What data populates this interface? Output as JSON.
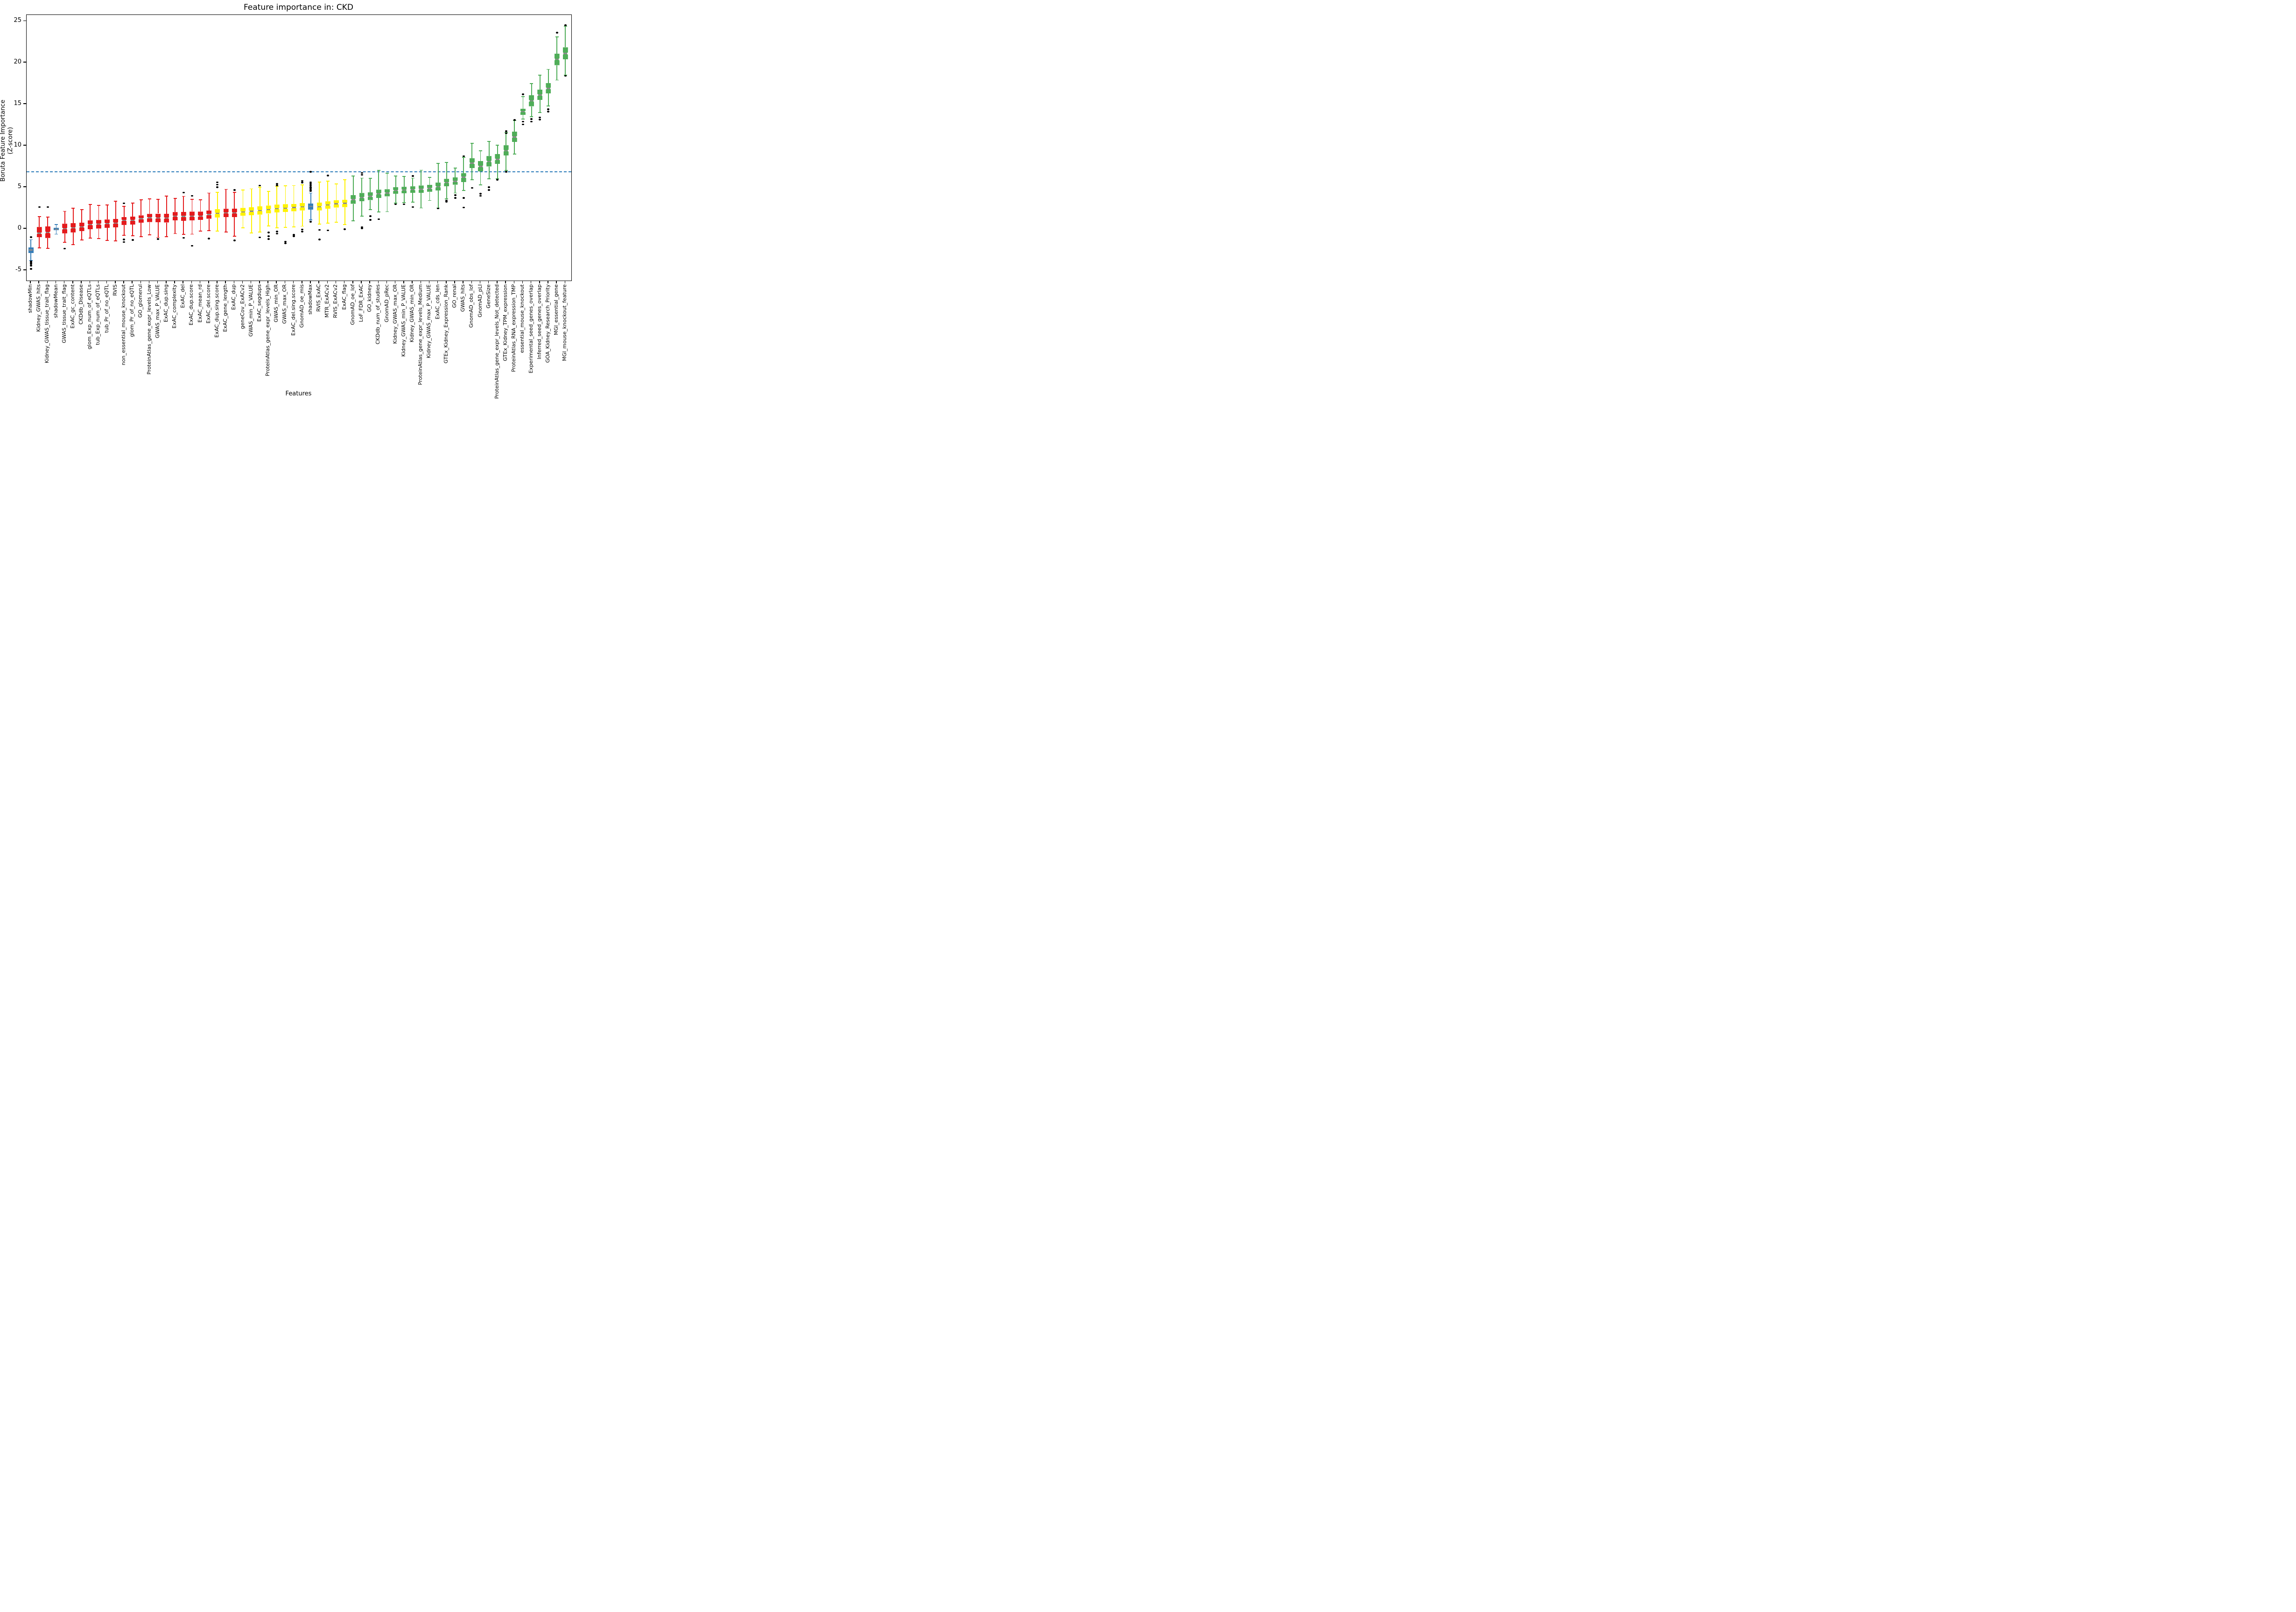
{
  "header": {
    "title": "Feature importance in: CKD"
  },
  "axes": {
    "x_label": "Features",
    "y_label_line1": "Boruta Feature Importance",
    "y_label_line2": "(Z-score)"
  },
  "colors": {
    "shadow": "#377EB8",
    "rejected": "#E41A1C",
    "tentative": "#FFF200",
    "confirmed": "#4FAD58",
    "median_line": "#8C8C8C",
    "threshold_line": "#2B7BBA",
    "outlier": "#000000"
  },
  "chart_data": {
    "type": "boxplot",
    "title": "Feature importance in: CKD",
    "xlabel": "Features",
    "ylabel": "Boruta Feature Importance (Z-score)",
    "ylim": [
      -6.25,
      25.75
    ],
    "yticks": [
      -5,
      0,
      5,
      10,
      15,
      20,
      25
    ],
    "grid": false,
    "threshold_line": {
      "y": 6.85,
      "style": "dashed",
      "color": "#2B7BBA"
    },
    "group_semantics": {
      "shadow": "shadow attribute (blue)",
      "rejected": "rejected feature (red)",
      "tentative": "tentative feature (yellow)",
      "confirmed": "confirmed feature (green)"
    },
    "series": [
      {
        "label": "shadowMin",
        "group": "shadow",
        "whislo": -3.85,
        "q1": -2.95,
        "med": -2.57,
        "q3": -2.25,
        "whishi": -1.33,
        "outliers": [
          -1.03,
          -3.95,
          -4.1,
          -4.25,
          -4.45,
          -4.85
        ]
      },
      {
        "label": "Kidney_GWAS_hits",
        "group": "rejected",
        "whislo": -2.3,
        "q1": -1.03,
        "med": -0.55,
        "q3": 0.2,
        "whishi": 1.45,
        "outliers": [
          2.6
        ]
      },
      {
        "label": "Kidney_GWAS_tissue_trait_flag",
        "group": "rejected",
        "whislo": -2.35,
        "q1": -1.12,
        "med": -0.46,
        "q3": 0.28,
        "whishi": 1.4,
        "outliers": [
          2.6
        ]
      },
      {
        "label": "shadowMean",
        "group": "shadow",
        "whislo": -0.66,
        "q1": -0.18,
        "med": -0.05,
        "q3": 0.08,
        "whishi": 0.49,
        "outliers": []
      },
      {
        "label": "GWAS_tissue_trait_flag",
        "group": "rejected",
        "whislo": -1.64,
        "q1": -0.56,
        "med": 0.0,
        "q3": 0.6,
        "whishi": 2.1,
        "outliers": [
          -2.4
        ]
      },
      {
        "label": "ExAC_gc_content",
        "group": "rejected",
        "whislo": -1.9,
        "q1": -0.45,
        "med": 0.1,
        "q3": 0.68,
        "whishi": 2.45,
        "outliers": []
      },
      {
        "label": "CKDdb_Disease",
        "group": "rejected",
        "whislo": -1.35,
        "q1": -0.3,
        "med": 0.22,
        "q3": 0.75,
        "whishi": 2.3,
        "outliers": []
      },
      {
        "label": "glom_Exp_num_of_eQTLs",
        "group": "rejected",
        "whislo": -1.15,
        "q1": -0.08,
        "med": 0.5,
        "q3": 1.0,
        "whishi": 2.9,
        "outliers": []
      },
      {
        "label": "tub_Exp_num_of_eQTLs",
        "group": "rejected",
        "whislo": -1.2,
        "q1": 0.02,
        "med": 0.55,
        "q3": 1.05,
        "whishi": 2.8,
        "outliers": []
      },
      {
        "label": "tub_Pr_of_no_eQTL",
        "group": "rejected",
        "whislo": -1.4,
        "q1": 0.1,
        "med": 0.62,
        "q3": 1.1,
        "whishi": 2.85,
        "outliers": []
      },
      {
        "label": "RVIS",
        "group": "rejected",
        "whislo": -1.45,
        "q1": 0.16,
        "med": 0.68,
        "q3": 1.18,
        "whishi": 3.3,
        "outliers": []
      },
      {
        "label": "non_essential_mouse_knockout",
        "group": "rejected",
        "whislo": -0.8,
        "q1": 0.45,
        "med": 1.0,
        "q3": 1.42,
        "whishi": 2.7,
        "outliers": [
          3.05,
          -1.3,
          -1.6
        ]
      },
      {
        "label": "glom_Pr_of_no_eQTL",
        "group": "rejected",
        "whislo": -0.85,
        "q1": 0.5,
        "med": 1.02,
        "q3": 1.48,
        "whishi": 3.1,
        "outliers": [
          -1.35
        ]
      },
      {
        "label": "GO_glomerul",
        "group": "rejected",
        "whislo": -0.95,
        "q1": 0.72,
        "med": 1.2,
        "q3": 1.6,
        "whishi": 3.5,
        "outliers": []
      },
      {
        "label": "ProteinAtlas_gene_expr_levels_Low",
        "group": "rejected",
        "whislo": -0.75,
        "q1": 0.8,
        "med": 1.32,
        "q3": 1.78,
        "whishi": 3.6,
        "outliers": []
      },
      {
        "label": "GWAS_max_P_VALUE",
        "group": "rejected",
        "whislo": -1.05,
        "q1": 0.78,
        "med": 1.3,
        "q3": 1.82,
        "whishi": 3.55,
        "outliers": [
          -1.25
        ]
      },
      {
        "label": "ExAC_dup.sing",
        "group": "rejected",
        "whislo": -0.95,
        "q1": 0.75,
        "med": 1.28,
        "q3": 1.8,
        "whishi": 3.95,
        "outliers": []
      },
      {
        "label": "ExAC_complexity",
        "group": "rejected",
        "whislo": -0.6,
        "q1": 1.0,
        "med": 1.5,
        "q3": 2.0,
        "whishi": 3.65,
        "outliers": []
      },
      {
        "label": "ExAC_del",
        "group": "rejected",
        "whislo": -0.7,
        "q1": 0.95,
        "med": 1.48,
        "q3": 2.02,
        "whishi": 3.9,
        "outliers": [
          4.35,
          -1.1
        ]
      },
      {
        "label": "ExAC_dup.score",
        "group": "rejected",
        "whislo": -0.65,
        "q1": 1.0,
        "med": 1.5,
        "q3": 2.05,
        "whishi": 3.55,
        "outliers": [
          3.95,
          -2.05
        ]
      },
      {
        "label": "ExAC_mean_rd",
        "group": "rejected",
        "whislo": -0.3,
        "q1": 1.05,
        "med": 1.52,
        "q3": 2.05,
        "whishi": 3.5,
        "outliers": []
      },
      {
        "label": "ExAC_del.score",
        "group": "rejected",
        "whislo": -0.25,
        "q1": 1.2,
        "med": 1.7,
        "q3": 2.2,
        "whishi": 4.3,
        "outliers": [
          -1.2
        ]
      },
      {
        "label": "ExAC_dup.sing.score",
        "group": "tentative",
        "whislo": -0.3,
        "q1": 1.35,
        "med": 1.85,
        "q3": 2.35,
        "whishi": 4.4,
        "outliers": [
          5.0,
          5.3,
          5.6
        ]
      },
      {
        "label": "ExAC_gene_length",
        "group": "rejected",
        "whislo": -0.4,
        "q1": 1.4,
        "med": 1.9,
        "q3": 2.4,
        "whishi": 4.75,
        "outliers": []
      },
      {
        "label": "ExAC_dup",
        "group": "rejected",
        "whislo": -0.9,
        "q1": 1.38,
        "med": 1.9,
        "q3": 2.42,
        "whishi": 4.4,
        "outliers": [
          4.65,
          -1.4
        ]
      },
      {
        "label": "geneCov_ExACv2",
        "group": "tentative",
        "whislo": 0.1,
        "q1": 1.55,
        "med": 2.0,
        "q3": 2.5,
        "whishi": 4.65,
        "outliers": []
      },
      {
        "label": "GWAS_min_P_VALUE",
        "group": "tentative",
        "whislo": -0.5,
        "q1": 1.6,
        "med": 2.1,
        "q3": 2.6,
        "whishi": 4.8,
        "outliers": []
      },
      {
        "label": "ExAC_segdups",
        "group": "tentative",
        "whislo": -0.4,
        "q1": 1.7,
        "med": 2.2,
        "q3": 2.7,
        "whishi": 5.0,
        "outliers": [
          5.2,
          -1.05
        ]
      },
      {
        "label": "ProteinAtlas_gene_expr_levels_High",
        "group": "tentative",
        "whislo": 0.35,
        "q1": 1.82,
        "med": 2.3,
        "q3": 2.78,
        "whishi": 4.5,
        "outliers": [
          -0.45,
          -0.9,
          -1.25
        ]
      },
      {
        "label": "GWAS_min_OR",
        "group": "tentative",
        "whislo": 0.1,
        "q1": 1.95,
        "med": 2.42,
        "q3": 2.9,
        "whishi": 5.1,
        "outliers": [
          5.2,
          5.4,
          -0.35,
          -0.6
        ]
      },
      {
        "label": "GWAS_max_OR",
        "group": "tentative",
        "whislo": 0.15,
        "q1": 2.0,
        "med": 2.45,
        "q3": 2.95,
        "whishi": 5.15,
        "outliers": [
          -1.55,
          -1.75
        ]
      },
      {
        "label": "ExAC_del.sing.score",
        "group": "tentative",
        "whislo": 0.2,
        "q1": 2.1,
        "med": 2.55,
        "q3": 3.0,
        "whishi": 5.2,
        "outliers": [
          -0.75,
          -0.9
        ]
      },
      {
        "label": "GnomAD_oe_mis",
        "group": "tentative",
        "whislo": 0.3,
        "q1": 2.2,
        "med": 2.62,
        "q3": 3.1,
        "whishi": 5.3,
        "outliers": [
          -0.1,
          -0.35,
          5.55,
          5.75
        ]
      },
      {
        "label": "shadowMax",
        "group": "shadow",
        "whislo": 1.05,
        "q1": 2.32,
        "med": 2.68,
        "q3": 3.05,
        "whishi": 4.3,
        "outliers": [
          0.85,
          4.55,
          4.7,
          4.85,
          5.0,
          5.2,
          5.4,
          5.6,
          6.85
        ]
      },
      {
        "label": "RVIS_ExAC",
        "group": "tentative",
        "whislo": 0.55,
        "q1": 2.2,
        "med": 2.65,
        "q3": 3.15,
        "whishi": 5.6,
        "outliers": [
          -0.15,
          -1.3
        ]
      },
      {
        "label": "MTR_ExACv2",
        "group": "tentative",
        "whislo": 0.65,
        "q1": 2.4,
        "med": 2.85,
        "q3": 3.3,
        "whishi": 5.75,
        "outliers": [
          6.4,
          -0.2
        ]
      },
      {
        "label": "RVIS_ExACv2",
        "group": "tentative",
        "whislo": 0.8,
        "q1": 2.55,
        "med": 3.0,
        "q3": 3.45,
        "whishi": 5.4,
        "outliers": []
      },
      {
        "label": "ExAC_flag",
        "group": "tentative",
        "whislo": 0.5,
        "q1": 2.6,
        "med": 3.05,
        "q3": 3.5,
        "whishi": 5.9,
        "outliers": [
          -0.05
        ]
      },
      {
        "label": "GnomAD_oe_lof",
        "group": "confirmed",
        "whislo": 0.95,
        "q1": 3.0,
        "med": 3.5,
        "q3": 4.05,
        "whishi": 6.35,
        "outliers": []
      },
      {
        "label": "LoF_FDR_ExAC",
        "group": "confirmed",
        "whislo": 1.5,
        "q1": 3.3,
        "med": 3.75,
        "q3": 4.3,
        "whishi": 6.1,
        "outliers": [
          6.5,
          6.7,
          0.2,
          0.05
        ]
      },
      {
        "label": "GO_kidney",
        "group": "confirmed",
        "whislo": 2.3,
        "q1": 3.45,
        "med": 3.9,
        "q3": 4.4,
        "whishi": 6.05,
        "outliers": [
          1.5,
          1.05
        ]
      },
      {
        "label": "CKDdb_num_of_studies",
        "group": "confirmed",
        "whislo": 2.0,
        "q1": 3.7,
        "med": 4.2,
        "q3": 4.7,
        "whishi": 7.0,
        "outliers": [
          1.15
        ]
      },
      {
        "label": "GnomAD_pRec",
        "group": "confirmed",
        "whislo": 2.05,
        "q1": 3.9,
        "med": 4.3,
        "q3": 4.75,
        "whishi": 6.7,
        "outliers": []
      },
      {
        "label": "Kidney_GWAS_max_OR",
        "group": "confirmed",
        "whislo": 3.1,
        "q1": 4.2,
        "med": 4.6,
        "q3": 5.0,
        "whishi": 6.35,
        "outliers": [
          2.95
        ]
      },
      {
        "label": "Kidney_GWAS_min_P_VALUE",
        "group": "confirmed",
        "whislo": 3.15,
        "q1": 4.25,
        "med": 4.65,
        "q3": 5.05,
        "whishi": 6.3,
        "outliers": [
          2.95
        ]
      },
      {
        "label": "Kidney_GWAS_min_OR",
        "group": "confirmed",
        "whislo": 3.2,
        "q1": 4.3,
        "med": 4.7,
        "q3": 5.1,
        "whishi": 6.1,
        "outliers": [
          6.35,
          2.6
        ]
      },
      {
        "label": "ProteinAtlas_gene_expr_levels_Medium",
        "group": "confirmed",
        "whislo": 2.5,
        "q1": 4.3,
        "med": 4.75,
        "q3": 5.2,
        "whishi": 7.05,
        "outliers": []
      },
      {
        "label": "Kidney_GWAS_max_P_VALUE",
        "group": "confirmed",
        "whislo": 3.4,
        "q1": 4.45,
        "med": 4.85,
        "q3": 5.3,
        "whishi": 6.2,
        "outliers": []
      },
      {
        "label": "ExAC_cds_len",
        "group": "confirmed",
        "whislo": 2.5,
        "q1": 4.6,
        "med": 5.05,
        "q3": 5.55,
        "whishi": 7.85,
        "outliers": [
          2.45
        ]
      },
      {
        "label": "GTEx_Kidney_Expression_Rank",
        "group": "confirmed",
        "whislo": 3.6,
        "q1": 5.1,
        "med": 5.55,
        "q3": 6.0,
        "whishi": 8.0,
        "outliers": [
          3.4,
          3.25
        ]
      },
      {
        "label": "GO_renal",
        "group": "confirmed",
        "whislo": 4.3,
        "q1": 5.3,
        "med": 5.7,
        "q3": 6.2,
        "whishi": 7.3,
        "outliers": [
          4.05,
          3.7
        ]
      },
      {
        "label": "GWAS_hits",
        "group": "confirmed",
        "whislo": 4.6,
        "q1": 5.6,
        "med": 6.2,
        "q3": 6.7,
        "whishi": 8.6,
        "outliers": [
          8.75,
          3.7,
          2.55
        ]
      },
      {
        "label": "GnomAD_obs_lof",
        "group": "confirmed",
        "whislo": 5.9,
        "q1": 7.3,
        "med": 7.9,
        "q3": 8.5,
        "whishi": 10.3,
        "outliers": [
          4.9
        ]
      },
      {
        "label": "GnomAD_pLI",
        "group": "confirmed",
        "whislo": 5.3,
        "q1": 6.9,
        "med": 7.5,
        "q3": 8.15,
        "whishi": 9.4,
        "outliers": [
          4.2,
          3.95
        ]
      },
      {
        "label": "GeneSize",
        "group": "confirmed",
        "whislo": 6.0,
        "q1": 7.5,
        "med": 8.1,
        "q3": 8.75,
        "whishi": 10.5,
        "outliers": [
          5.0,
          4.65
        ]
      },
      {
        "label": "ProteinAtlas_gene_expr_levels_Not_detected",
        "group": "confirmed",
        "whislo": 6.0,
        "q1": 7.8,
        "med": 8.35,
        "q3": 9.0,
        "whishi": 10.05,
        "outliers": [
          5.9
        ]
      },
      {
        "label": "GTEx_Kidney_TPM_expression",
        "group": "confirmed",
        "whislo": 7.0,
        "q1": 8.8,
        "med": 9.4,
        "q3": 10.05,
        "whishi": 11.6,
        "outliers": [
          11.75,
          11.5,
          6.85
        ]
      },
      {
        "label": "ProteinAtlas_RNA_expression_TMP",
        "group": "confirmed",
        "whislo": 9.0,
        "q1": 10.45,
        "med": 11.05,
        "q3": 11.7,
        "whishi": 13.05,
        "outliers": [
          13.1
        ]
      },
      {
        "label": "essential_mouse_knockout",
        "group": "confirmed",
        "whislo": 13.2,
        "q1": 13.7,
        "med": 14.1,
        "q3": 14.45,
        "whishi": 15.9,
        "outliers": [
          16.2,
          12.9,
          12.55
        ]
      },
      {
        "label": "Experimental_seed_genes_overlap",
        "group": "confirmed",
        "whislo": 13.5,
        "q1": 14.75,
        "med": 15.4,
        "q3": 16.1,
        "whishi": 17.5,
        "outliers": [
          13.2,
          12.9
        ]
      },
      {
        "label": "Inferred_seed_genes_overlap",
        "group": "confirmed",
        "whislo": 14.0,
        "q1": 15.5,
        "med": 16.1,
        "q3": 16.75,
        "whishi": 18.5,
        "outliers": [
          13.4,
          13.15
        ]
      },
      {
        "label": "GOA_Kidney_Research_Priority",
        "group": "confirmed",
        "whislo": 14.8,
        "q1": 16.3,
        "med": 16.9,
        "q3": 17.55,
        "whishi": 19.2,
        "outliers": [
          14.4,
          14.1
        ]
      },
      {
        "label": "MGI_essential_gene",
        "group": "confirmed",
        "whislo": 17.9,
        "q1": 19.7,
        "med": 20.4,
        "q3": 21.1,
        "whishi": 23.1,
        "outliers": [
          23.6
        ]
      },
      {
        "label": "MGI_mouse_knockout_feature",
        "group": "confirmed",
        "whislo": 18.5,
        "q1": 20.4,
        "med": 21.1,
        "q3": 21.85,
        "whishi": 24.4,
        "outliers": [
          24.5,
          18.4
        ]
      }
    ]
  }
}
